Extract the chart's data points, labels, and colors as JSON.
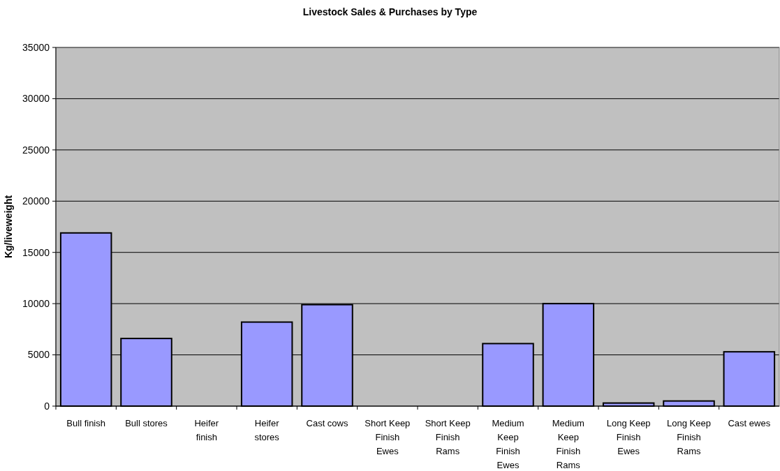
{
  "chart_data": {
    "type": "bar",
    "title": "Livestock Sales & Purchases by Type",
    "ylabel": "Kg/liveweight",
    "categories": [
      "Bull finish",
      "Bull stores",
      "Heifer finish",
      "Heifer stores",
      "Cast cows",
      "Short Keep Finish Ewes",
      "Short Keep Finish Rams",
      "Medium Keep Finish Ewes",
      "Medium Keep Finish Rams",
      "Long Keep Finish Ewes",
      "Long Keep Finish Rams",
      "Cast ewes"
    ],
    "values": [
      16900,
      6600,
      0,
      8200,
      9900,
      0,
      0,
      6100,
      10000,
      300,
      500,
      5300
    ],
    "color": "#9999ff",
    "ylim": [
      0,
      35000
    ],
    "yticks": [
      0,
      5000,
      10000,
      15000,
      20000,
      25000,
      30000,
      35000
    ],
    "grid": "y"
  }
}
